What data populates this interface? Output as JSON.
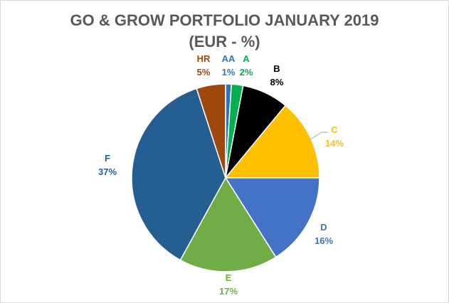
{
  "chart_data": {
    "type": "pie",
    "title_line1": "GO & GROW PORTFOLIO JANUARY 2019",
    "title_line2": "(EUR - %)",
    "categories": [
      "AA",
      "A",
      "B",
      "C",
      "D",
      "E",
      "F",
      "HR"
    ],
    "values": [
      1,
      2,
      8,
      14,
      16,
      17,
      37,
      5
    ],
    "value_labels": [
      "1%",
      "2%",
      "8%",
      "14%",
      "16%",
      "17%",
      "37%",
      "5%"
    ],
    "colors": [
      "#2E75B6",
      "#00B050",
      "#000000",
      "#FFC000",
      "#4472C4",
      "#70AD47",
      "#255E91",
      "#9E480E"
    ],
    "label_colors": [
      "#2E75B6",
      "#00B050",
      "#000000",
      "#FFC000",
      "#4472C4",
      "#70AD47",
      "#255E91",
      "#9E480E"
    ],
    "start_angle": "12 o'clock, clockwise",
    "legend": "none (data labels)"
  }
}
